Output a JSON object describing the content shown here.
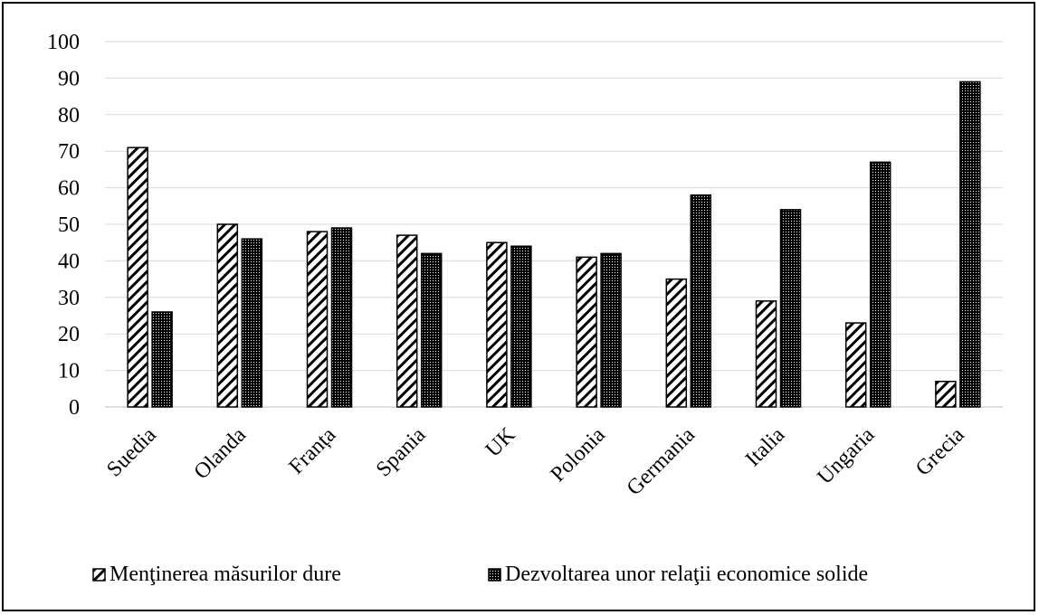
{
  "chart_data": {
    "type": "bar",
    "categories": [
      "Suedia",
      "Olanda",
      "Franța",
      "Spania",
      "UK",
      "Polonia",
      "Germania",
      "Italia",
      "Ungaria",
      "Grecia"
    ],
    "series": [
      {
        "name": "Menţinerea măsurilor dure",
        "values": [
          71,
          50,
          48,
          47,
          45,
          41,
          35,
          29,
          23,
          7
        ],
        "pattern": "diagonal-hatch",
        "color": "#000000"
      },
      {
        "name": "Dezvoltarea unor relaţii economice solide",
        "values": [
          26,
          46,
          49,
          42,
          44,
          42,
          58,
          54,
          67,
          89
        ],
        "pattern": "dense-dots",
        "color": "#000000"
      }
    ],
    "ylim": [
      0,
      100
    ],
    "yticks": [
      "0",
      "10",
      "20",
      "30",
      "40",
      "50",
      "60",
      "70",
      "80",
      "90",
      "100"
    ],
    "title": "",
    "xlabel": "",
    "ylabel": "",
    "grid": true,
    "legend_position": "bottom"
  }
}
